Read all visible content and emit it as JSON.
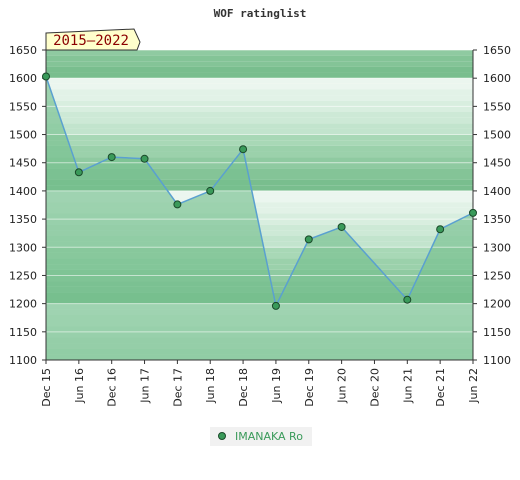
{
  "chart_data": {
    "type": "area",
    "title": "WOF ratinglist",
    "period_badge": "2015–2022",
    "x_ticks": [
      "Dec 15",
      "Jun 16",
      "Dec 16",
      "Jun 17",
      "Dec 17",
      "Jun 18",
      "Dec 18",
      "Jun 19",
      "Dec 19",
      "Jun 20",
      "Dec 20",
      "Jun 21",
      "Dec 21",
      "Jun 22"
    ],
    "y_ticks": [
      1650,
      1600,
      1550,
      1500,
      1450,
      1400,
      1350,
      1300,
      1250,
      1200,
      1150,
      1100
    ],
    "ylim": [
      1100,
      1650
    ],
    "series": [
      {
        "name": "IMANAKA Ro",
        "x": [
          "Dec 15",
          "Jun 16",
          "Dec 16",
          "Jun 17",
          "Dec 17",
          "Jun 18",
          "Dec 18",
          "Jun 19",
          "Dec 19",
          "Jun 20",
          "Jun 21",
          "Dec 21",
          "Jun 22"
        ],
        "values": [
          1603,
          1433,
          1460,
          1457,
          1376,
          1400,
          1474,
          1196,
          1314,
          1336,
          1207,
          1332,
          1361
        ]
      }
    ],
    "colors": {
      "line": "#5aa0d0",
      "marker": "#3a9a5a",
      "band_dark": "#77c08f",
      "band_light": "#e8f5ec"
    },
    "legend_position": "bottom-center",
    "grid": true
  }
}
